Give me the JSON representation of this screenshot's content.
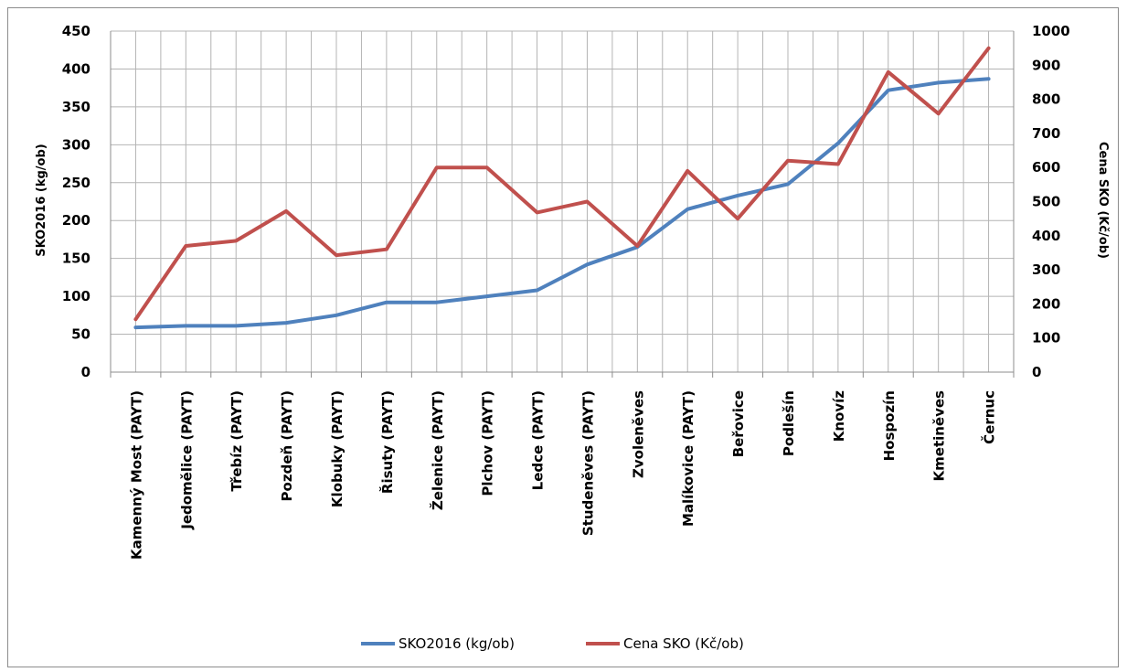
{
  "chart_data": {
    "type": "line",
    "categories": [
      "Kamenný Most (PAYT)",
      "Jedomělice (PAYT)",
      "Třebíz (PAYT)",
      "Pozdeň (PAYT)",
      "Klobuky (PAYT)",
      "Řisuty (PAYT)",
      "Želenice (PAYT)",
      "Plchov (PAYT)",
      "Ledce (PAYT)",
      "Studeněves (PAYT)",
      "Zvoleněves",
      "Malíkovice (PAYT)",
      "Beřovice",
      "Podlešín",
      "Knovíz",
      "Hospozín",
      "Kmetiněves",
      "Černuc"
    ],
    "series": [
      {
        "name": "SKO2016 (kg/ob)",
        "axis": "left",
        "color": "#4f81bd",
        "values": [
          59,
          61,
          61,
          65,
          75,
          92,
          92,
          100,
          108,
          142,
          165,
          215,
          233,
          248,
          302,
          372,
          382,
          387
        ]
      },
      {
        "name": "Cena SKO (Kč/ob)",
        "axis": "right",
        "color": "#c0504d",
        "values": [
          155,
          370,
          385,
          472,
          343,
          360,
          600,
          600,
          468,
          500,
          370,
          590,
          450,
          620,
          610,
          880,
          758,
          950
        ]
      }
    ],
    "ylabel_left": "SKO2016 (kg/ob)",
    "ylabel_right": "Cena SKO (Kč/ob)",
    "ylim_left": [
      0,
      450
    ],
    "ylim_right": [
      0,
      1000
    ],
    "yticks_left": [
      0,
      50,
      100,
      150,
      200,
      250,
      300,
      350,
      400,
      450
    ],
    "yticks_right": [
      0,
      100,
      200,
      300,
      400,
      500,
      600,
      700,
      800,
      900,
      1000
    ],
    "grid": true,
    "legend_position": "bottom"
  }
}
